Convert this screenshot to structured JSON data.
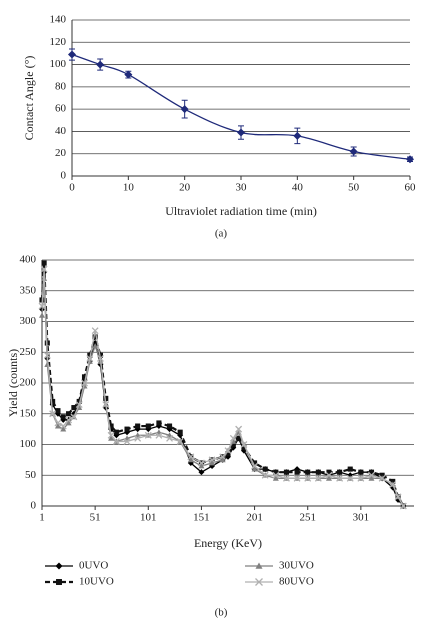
{
  "chart_data": [
    {
      "type": "line",
      "x_label": "Ultraviolet radiation time (min)",
      "y_label": "Contact Angle (°)",
      "caption": "(a)",
      "x": [
        0,
        5,
        10,
        20,
        30,
        40,
        50,
        60
      ],
      "values": [
        109,
        100,
        91,
        60,
        39,
        36,
        22,
        15
      ],
      "errors": [
        5,
        5,
        3,
        8,
        6,
        7,
        4,
        2
      ],
      "color": "#1f2a7a",
      "marker": "diamond",
      "smooth": true,
      "xlim": [
        0,
        60
      ],
      "xticks": [
        0,
        10,
        20,
        30,
        40,
        50,
        60
      ],
      "ylim": [
        0,
        140
      ],
      "yticks": [
        0,
        20,
        40,
        60,
        80,
        100,
        120,
        140
      ],
      "grid": true
    },
    {
      "type": "line",
      "x_label": "Energy (KeV)",
      "y_label": "Yield (counts)",
      "caption": "(b)",
      "x": [
        1,
        3,
        6,
        11,
        16,
        21,
        26,
        31,
        36,
        41,
        46,
        51,
        56,
        61,
        66,
        71,
        81,
        91,
        101,
        111,
        121,
        131,
        141,
        151,
        161,
        171,
        176,
        181,
        186,
        191,
        201,
        211,
        221,
        231,
        241,
        251,
        261,
        271,
        281,
        291,
        301,
        311,
        321,
        331,
        336,
        341
      ],
      "series": [
        {
          "name": "0UVO",
          "color": "#000000",
          "marker": "diamond",
          "linestyle": "solid",
          "values": [
            320,
            380,
            240,
            165,
            150,
            140,
            140,
            150,
            170,
            205,
            235,
            265,
            230,
            160,
            125,
            115,
            120,
            125,
            125,
            130,
            125,
            115,
            70,
            55,
            65,
            75,
            80,
            95,
            110,
            90,
            60,
            60,
            55,
            55,
            60,
            55,
            55,
            50,
            55,
            50,
            55,
            55,
            45,
            30,
            10,
            0
          ]
        },
        {
          "name": "10UVO",
          "color": "#111111",
          "marker": "square",
          "linestyle": "dashed",
          "values": [
            335,
            395,
            265,
            170,
            155,
            145,
            150,
            160,
            170,
            210,
            245,
            275,
            245,
            175,
            130,
            120,
            125,
            130,
            130,
            135,
            130,
            120,
            80,
            70,
            75,
            80,
            85,
            100,
            110,
            95,
            70,
            60,
            55,
            55,
            55,
            55,
            55,
            55,
            55,
            60,
            55,
            55,
            50,
            40,
            15,
            0
          ]
        },
        {
          "name": "30UVO",
          "color": "#808080",
          "marker": "triangle",
          "linestyle": "solid",
          "values": [
            310,
            370,
            230,
            150,
            130,
            125,
            135,
            145,
            160,
            195,
            235,
            260,
            235,
            165,
            110,
            105,
            110,
            115,
            115,
            120,
            115,
            105,
            75,
            65,
            70,
            75,
            90,
            105,
            120,
            100,
            60,
            50,
            45,
            45,
            45,
            45,
            45,
            45,
            45,
            45,
            45,
            45,
            45,
            35,
            15,
            0
          ]
        },
        {
          "name": "80UVO",
          "color": "#b0b0b0",
          "marker": "x",
          "linestyle": "solid",
          "values": [
            325,
            385,
            245,
            150,
            135,
            130,
            140,
            145,
            165,
            200,
            240,
            285,
            240,
            165,
            115,
            105,
            105,
            110,
            115,
            115,
            110,
            105,
            80,
            70,
            75,
            80,
            90,
            110,
            125,
            100,
            65,
            50,
            50,
            45,
            45,
            45,
            45,
            50,
            45,
            45,
            45,
            50,
            45,
            35,
            15,
            0
          ]
        }
      ],
      "xlim": [
        1,
        351
      ],
      "xticks": [
        1,
        51,
        101,
        151,
        201,
        251,
        301
      ],
      "ylim": [
        0,
        400
      ],
      "yticks": [
        0,
        50,
        100,
        150,
        200,
        250,
        300,
        350,
        400
      ],
      "grid": true,
      "legend": "bottom"
    }
  ]
}
